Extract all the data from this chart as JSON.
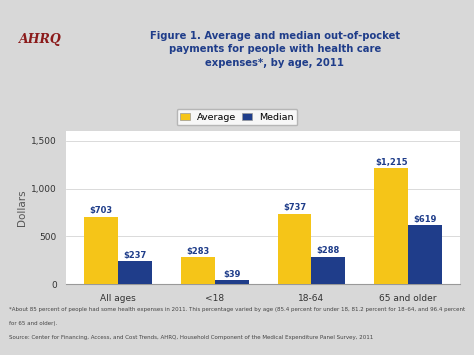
{
  "title_line1": "Figure 1. Average and median out-of-pocket",
  "title_line2": "payments for people with health care",
  "title_line3": "expenses*, by age, 2011",
  "categories": [
    "All ages",
    "<18",
    "18-64",
    "65 and older"
  ],
  "average_values": [
    703,
    283,
    737,
    1215
  ],
  "median_values": [
    237,
    39,
    288,
    619
  ],
  "average_color": "#F5C518",
  "median_color": "#1F3D8A",
  "ylabel": "Dollars",
  "ylim": [
    0,
    1600
  ],
  "yticks": [
    0,
    500,
    1000,
    1500
  ],
  "legend_labels": [
    "Average",
    "Median"
  ],
  "bg_color": "#D8D8D8",
  "plot_bg_color": "#FFFFFF",
  "header_bg_color": "#D0D0D0",
  "title_color": "#1F3D8A",
  "footnote1": "*About 85 percent of people had some health expenses in 2011. This percentage varied by age (85.4 percent for under 18, 81.2 percent for 18–64, and 96.4 percent",
  "footnote2": "for 65 and older).",
  "source": "Source: Center for Financing, Access, and Cost Trends, AHRQ, Household Component of the Medical Expenditure Panel Survey, 2011",
  "bar_width": 0.35,
  "label_fontsize": 6.0,
  "tick_fontsize": 6.5,
  "ylabel_fontsize": 7.5
}
